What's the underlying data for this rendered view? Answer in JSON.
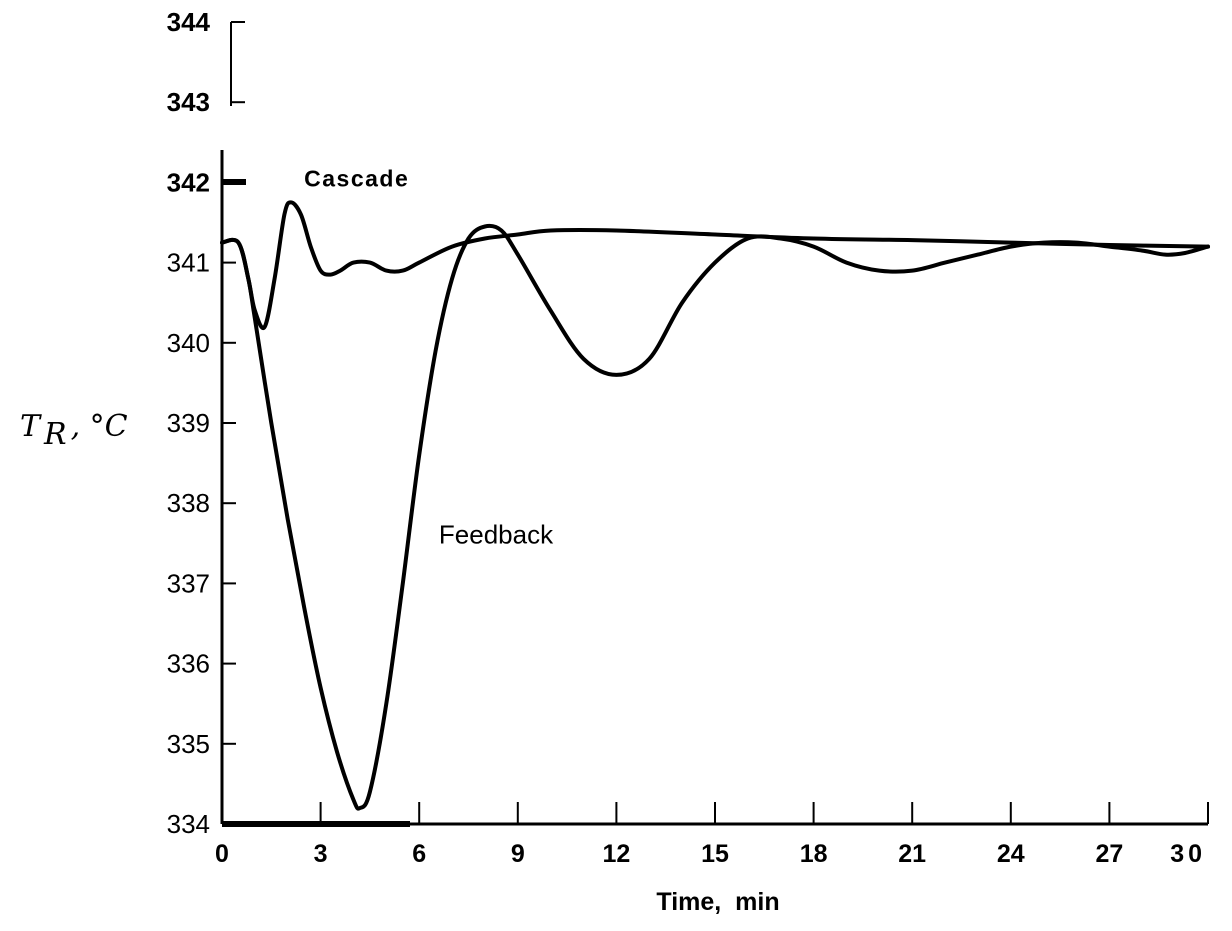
{
  "chart_data": {
    "type": "line",
    "title": "",
    "xlabel": "Time,  min",
    "ylabel": {
      "main": "T",
      "sub": "R",
      "unit": ", °C"
    },
    "xlim": [
      0,
      30
    ],
    "ylim": [
      334,
      344
    ],
    "x_ticks": [
      "0",
      "3",
      "6",
      "9",
      "12",
      "15",
      "18",
      "21",
      "24",
      "27",
      "30"
    ],
    "y_ticks": [
      "334",
      "335",
      "336",
      "337",
      "338",
      "339",
      "340",
      "341",
      "342",
      "343",
      "344"
    ],
    "grid": false,
    "legend": "none",
    "series": [
      {
        "name": "Cascade",
        "x": [
          0,
          0.5,
          0.8,
          1.0,
          1.3,
          1.6,
          1.9,
          2.1,
          2.4,
          2.7,
          3.0,
          3.3,
          3.6,
          4.0,
          4.5,
          5.0,
          5.5,
          6.0,
          7.0,
          8.0,
          9.0,
          10.0,
          12.0,
          15.0,
          18.0,
          21.0,
          24.0,
          27.0,
          30.0
        ],
        "y": [
          341.25,
          341.25,
          340.8,
          340.4,
          340.2,
          340.8,
          341.6,
          341.75,
          341.6,
          341.2,
          340.9,
          340.85,
          340.9,
          341.0,
          341.0,
          340.9,
          340.9,
          341.0,
          341.2,
          341.3,
          341.35,
          341.4,
          341.4,
          341.35,
          341.3,
          341.28,
          341.25,
          341.22,
          341.2
        ]
      },
      {
        "name": "Feedback",
        "x": [
          0,
          0.5,
          0.8,
          1.0,
          1.5,
          2.0,
          2.5,
          3.0,
          3.5,
          4.0,
          4.2,
          4.5,
          5.0,
          5.5,
          6.0,
          6.5,
          7.0,
          7.5,
          8.0,
          8.5,
          9.0,
          10.0,
          11.0,
          12.0,
          13.0,
          14.0,
          15.0,
          16.0,
          17.0,
          18.0,
          19.0,
          20.0,
          21.0,
          22.0,
          23.0,
          24.0,
          25.0,
          26.0,
          27.0,
          28.0,
          28.7,
          29.3,
          30.0
        ],
        "y": [
          341.25,
          341.25,
          340.8,
          340.3,
          339.0,
          337.8,
          336.7,
          335.7,
          334.9,
          334.3,
          334.2,
          334.4,
          335.5,
          337.0,
          338.6,
          339.9,
          340.8,
          341.3,
          341.45,
          341.4,
          341.1,
          340.4,
          339.8,
          339.6,
          339.8,
          340.5,
          341.0,
          341.3,
          341.3,
          341.2,
          341.0,
          340.9,
          340.9,
          341.0,
          341.1,
          341.2,
          341.25,
          341.25,
          341.2,
          341.15,
          341.1,
          341.12,
          341.2
        ]
      }
    ],
    "annotations": [
      {
        "text": "Cascade",
        "x": 2.5,
        "y": 341.95
      },
      {
        "text": "Feedback",
        "x": 6.6,
        "y": 337.5
      }
    ]
  }
}
